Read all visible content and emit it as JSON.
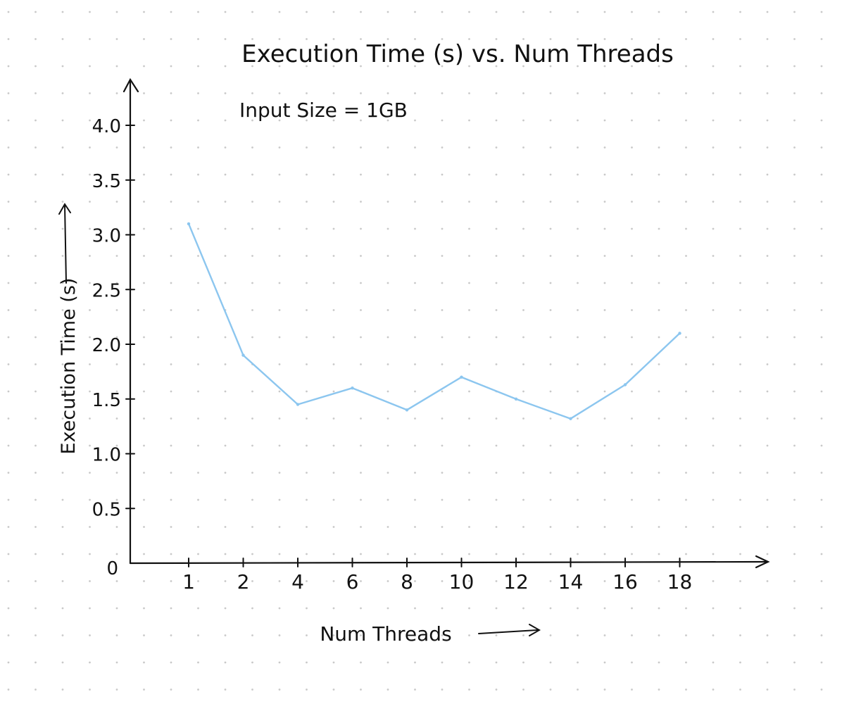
{
  "colors": {
    "background": "#ffffff",
    "dot_grid": "#c9c9c9",
    "ink": "#111111",
    "series_line": "#8cc6ef"
  },
  "chart_data": {
    "type": "line",
    "title": "Execution Time (s) vs. Num Threads",
    "annotation": "Input Size = 1GB",
    "xlabel": "Num Threads",
    "ylabel": "Execution Time (s)",
    "x_tick_labels": [
      "1",
      "2",
      "4",
      "6",
      "8",
      "10",
      "12",
      "14",
      "16",
      "18"
    ],
    "y_tick_labels": [
      "0",
      "0.5",
      "1.0",
      "1.5",
      "2.0",
      "2.5",
      "3.0",
      "3.5",
      "4.0"
    ],
    "y_ticks": [
      0,
      0.5,
      1.0,
      1.5,
      2.0,
      2.5,
      3.0,
      3.5,
      4.0
    ],
    "ylim": [
      0,
      4.0
    ],
    "grid": false,
    "legend": "none",
    "series": [
      {
        "x": [
          "1",
          "2",
          "4",
          "6",
          "8",
          "10",
          "12",
          "14",
          "16",
          "18"
        ],
        "values": [
          3.1,
          1.9,
          1.45,
          1.6,
          1.4,
          1.7,
          1.5,
          1.32,
          1.63,
          2.1
        ]
      }
    ]
  }
}
